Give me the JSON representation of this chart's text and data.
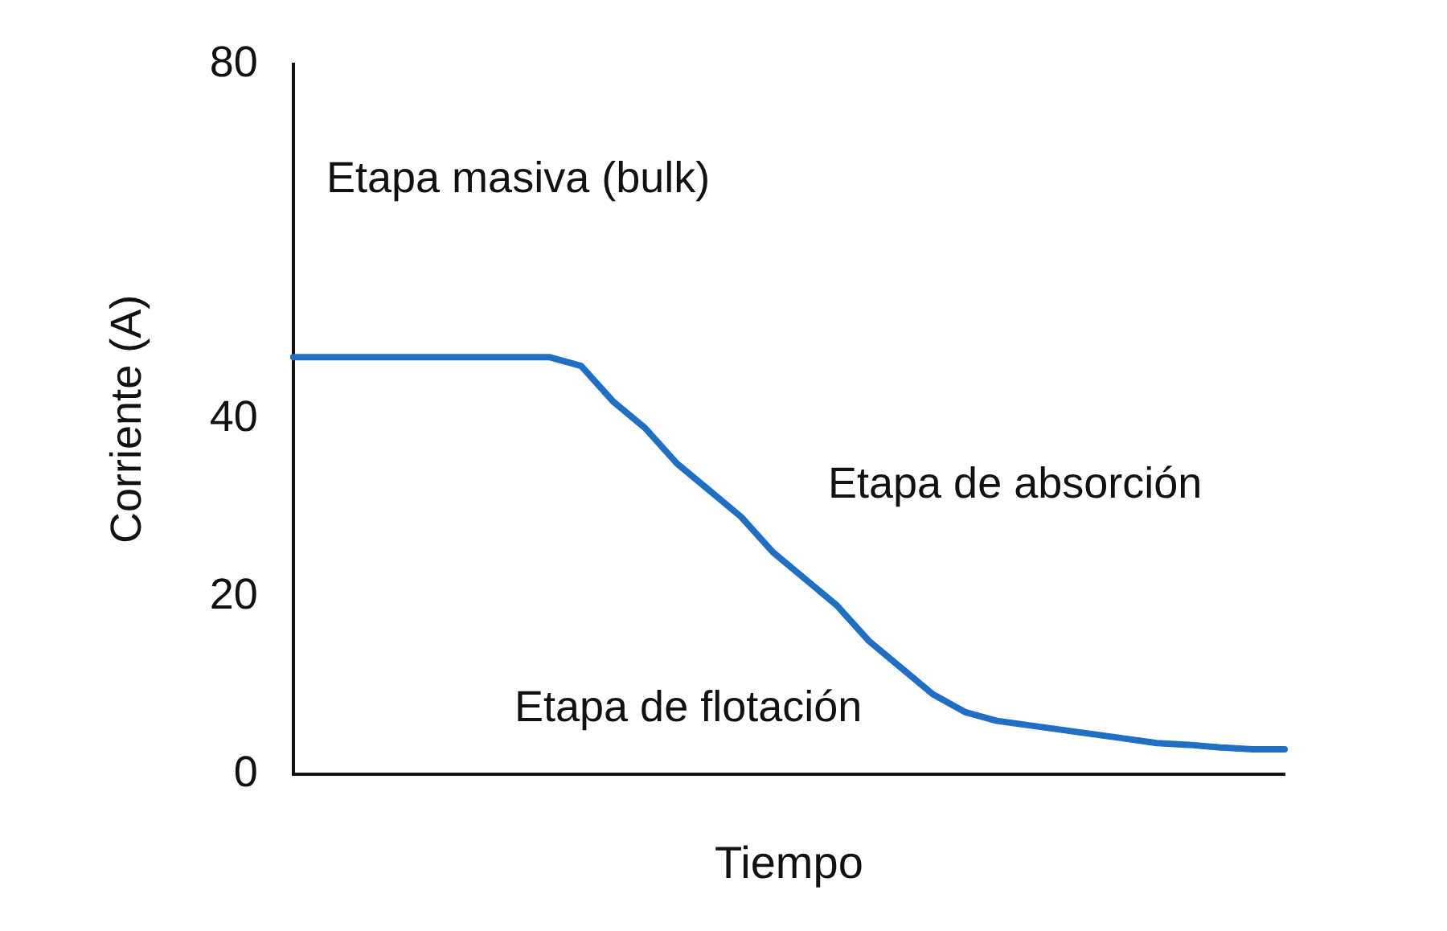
{
  "chart_data": {
    "type": "line",
    "xlabel": "Tiempo",
    "ylabel": "Corriente (A)",
    "categories": [
      null,
      null,
      null,
      null,
      null,
      null,
      null,
      null,
      null,
      null,
      null,
      null,
      null,
      null,
      null,
      null,
      null,
      null,
      null,
      null,
      null,
      null,
      null,
      null,
      null,
      null,
      null,
      null,
      null,
      null,
      null,
      null
    ],
    "series": [
      {
        "color": "#1f6fc5",
        "values": [
          47,
          47,
          47,
          47,
          47,
          47,
          47,
          47,
          47,
          46,
          42,
          39,
          35,
          32,
          29,
          25,
          22,
          19,
          15,
          12,
          9,
          7,
          6,
          5.5,
          5,
          4.5,
          4,
          3.5,
          3.3,
          3,
          2.8,
          2.8
        ]
      }
    ],
    "ylim": [
      0,
      80
    ],
    "yticks": [
      0,
      20,
      40,
      80
    ],
    "grid": false,
    "legend": false,
    "marker": "none",
    "line_style": "solid",
    "tick_labels": "y",
    "annotations": [
      "Etapa masiva (bulk)",
      "Etapa de absorción",
      "Etapa de flotación"
    ]
  }
}
